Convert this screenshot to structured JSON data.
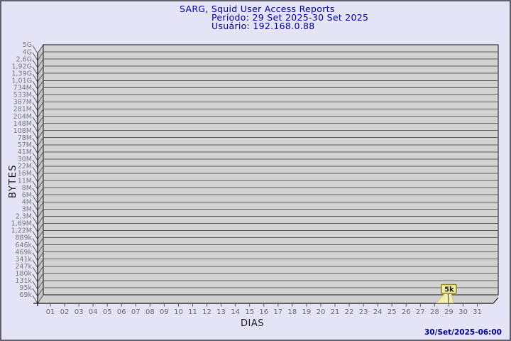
{
  "header": {
    "title": "SARG, Squid User Access Reports",
    "period": "Período: 29 Set 2025-30 Set 2025",
    "user": "Usuário: 192.168.0.88"
  },
  "chart_data": {
    "type": "line",
    "title": "SARG, Squid User Access Reports",
    "subtitle_lines": [
      "Período: 29 Set 2025-30 Set 2025",
      "Usuário: 192.168.0.88"
    ],
    "xlabel": "DIAS",
    "ylabel": "BYTES",
    "y_scale": "logarithmic",
    "grid": true,
    "legend": "none",
    "x_tick_labels": [
      "01",
      "02",
      "03",
      "04",
      "05",
      "06",
      "07",
      "08",
      "09",
      "10",
      "11",
      "12",
      "13",
      "14",
      "15",
      "16",
      "17",
      "18",
      "19",
      "20",
      "21",
      "22",
      "23",
      "24",
      "25",
      "26",
      "27",
      "28",
      "29",
      "30",
      "31"
    ],
    "y_tick_labels": [
      "5G",
      "4G",
      "2,6G",
      "1,92G",
      "1,39G",
      "1,01G",
      "734M",
      "533M",
      "387M",
      "281M",
      "204M",
      "148M",
      "108M",
      "78M",
      "57M",
      "41M",
      "30M",
      "22M",
      "16M",
      "11M",
      "8M",
      "6M",
      "4M",
      "3M",
      "2,3M",
      "1,69M",
      "1,22M",
      "889k",
      "646k",
      "469k",
      "341k",
      "247k",
      "180k",
      "131k",
      "95k",
      "69k"
    ],
    "series": [
      {
        "name": "192.168.0.88",
        "points": [
          {
            "day": 29,
            "value_label": "5k",
            "value_bytes": 5000
          }
        ]
      }
    ],
    "annotations": [
      {
        "day": 29,
        "text": "5k"
      }
    ],
    "colors": {
      "background": "#e4e4f6",
      "title_text": "#00008f",
      "plot_bg": "#d3d3d3",
      "wall": "#c6c6c6",
      "floor": "#cfcfcf",
      "grid": "#5e5e5e",
      "axis": "#161616",
      "y_tick_text": "#7a7a7a",
      "x_tick_text": "#6b6b6b",
      "balloon_fill": "#f4eeae",
      "balloon_border": "#8f8c17"
    }
  },
  "footer": {
    "timestamp": "30/Set/2025-06:00"
  }
}
